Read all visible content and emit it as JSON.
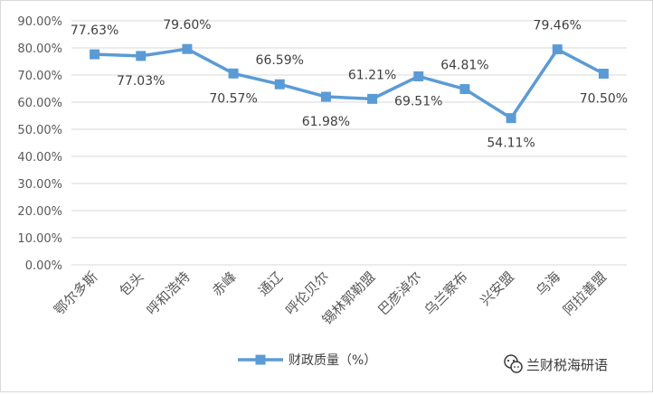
{
  "chart_data": {
    "type": "line",
    "categories": [
      "鄂尔多斯",
      "包头",
      "呼和浩特",
      "赤峰",
      "通辽",
      "呼伦贝尔",
      "锡林郭勒盟",
      "巴彦淖尔",
      "乌兰察布",
      "兴安盟",
      "乌海",
      "阿拉善盟"
    ],
    "series": [
      {
        "name": "财政质量（%）",
        "values": [
          77.63,
          77.03,
          79.6,
          70.57,
          66.59,
          61.98,
          61.21,
          69.51,
          64.81,
          54.11,
          79.46,
          70.5
        ],
        "value_labels": [
          "77.63%",
          "77.03%",
          "79.60%",
          "70.57%",
          "66.59%",
          "61.98%",
          "61.21%",
          "69.51%",
          "64.81%",
          "54.11%",
          "79.46%",
          "70.50%"
        ],
        "color": "#5b9bd5",
        "marker": "square"
      }
    ],
    "y_ticks": [
      "0.00%",
      "10.00%",
      "20.00%",
      "30.00%",
      "40.00%",
      "50.00%",
      "60.00%",
      "70.00%",
      "80.00%",
      "90.00%"
    ],
    "ylim": [
      0,
      90
    ],
    "y_step": 10,
    "grid": true,
    "legend_placement": "bottom"
  },
  "watermark": {
    "text": "兰财税海研语",
    "icon": "wechat-icon"
  },
  "colors": {
    "series": "#5b9bd5",
    "grid": "#d9d9d9",
    "text": "#595959"
  }
}
